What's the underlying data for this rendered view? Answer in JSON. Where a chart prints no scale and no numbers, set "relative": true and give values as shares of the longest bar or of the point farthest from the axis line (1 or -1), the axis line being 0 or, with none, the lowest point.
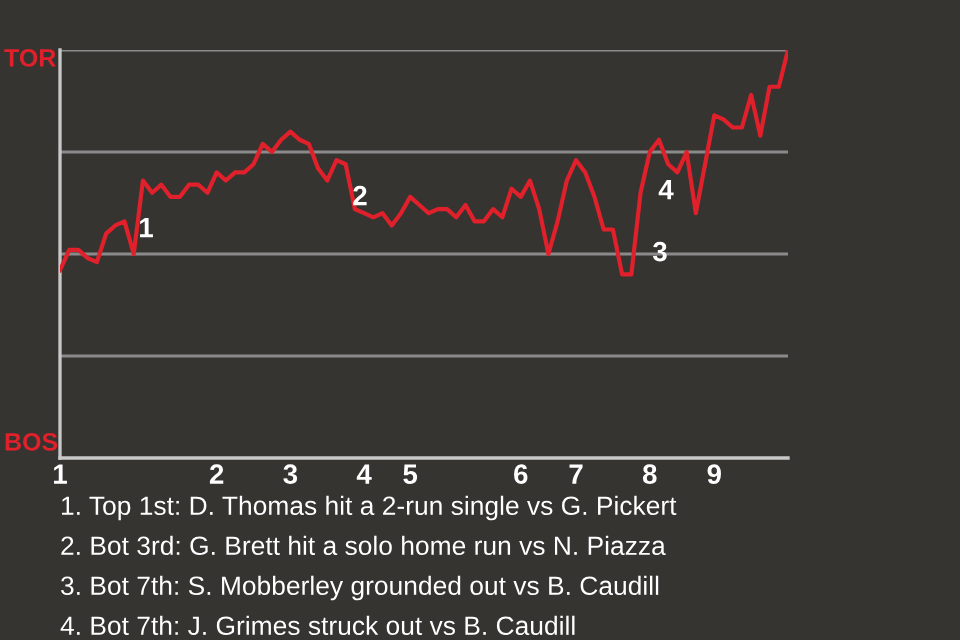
{
  "chart_data": {
    "type": "line",
    "relative": true,
    "categories": [
      "1",
      null,
      null,
      null,
      null,
      null,
      null,
      null,
      null,
      null,
      null,
      null,
      null,
      null,
      null,
      null,
      null,
      "2",
      null,
      null,
      null,
      null,
      null,
      null,
      null,
      "3",
      null,
      null,
      null,
      null,
      null,
      null,
      null,
      "4",
      null,
      null,
      null,
      null,
      "5",
      null,
      null,
      null,
      null,
      null,
      null,
      null,
      null,
      null,
      null,
      null,
      "6",
      null,
      null,
      null,
      null,
      null,
      "7",
      null,
      null,
      null,
      null,
      null,
      null,
      null,
      "8",
      null,
      null,
      null,
      null,
      null,
      null,
      "9",
      null,
      null,
      null,
      null,
      null,
      null,
      null,
      null
    ],
    "series": [
      {
        "color": "#e0202a",
        "values": [
          0.46,
          0.51,
          0.51,
          0.49,
          0.48,
          0.55,
          0.57,
          0.58,
          0.5,
          0.68,
          0.65,
          0.67,
          0.64,
          0.64,
          0.67,
          0.67,
          0.65,
          0.7,
          0.68,
          0.7,
          0.7,
          0.72,
          0.77,
          0.75,
          0.78,
          0.8,
          0.78,
          0.77,
          0.71,
          0.68,
          0.73,
          0.72,
          0.61,
          0.6,
          0.59,
          0.6,
          0.57,
          0.6,
          0.64,
          0.62,
          0.6,
          0.61,
          0.61,
          0.59,
          0.62,
          0.58,
          0.58,
          0.61,
          0.59,
          0.66,
          0.64,
          0.68,
          0.61,
          0.5,
          0.58,
          0.68,
          0.73,
          0.7,
          0.64,
          0.56,
          0.56,
          0.45,
          0.45,
          0.65,
          0.75,
          0.78,
          0.72,
          0.7,
          0.75,
          0.6,
          0.72,
          0.84,
          0.83,
          0.81,
          0.81,
          0.89,
          0.79,
          0.91,
          0.91,
          1.0
        ]
      }
    ],
    "grid": "y",
    "legend": false,
    "marker": "none",
    "line_style": "solid",
    "annotations": [
      "TOR",
      "BOS",
      "1",
      "2",
      "3",
      "4",
      "1. Top 1st: D. Thomas hit a 2-run single vs G. Pickert",
      "2. Bot 3rd: G. Brett hit a solo home run vs N. Piazza",
      "3. Bot 7th: S. Mobberley grounded out vs B. Caudill",
      "4. Bot 7th: J. Grimes struck out vs B. Caudill"
    ]
  }
}
